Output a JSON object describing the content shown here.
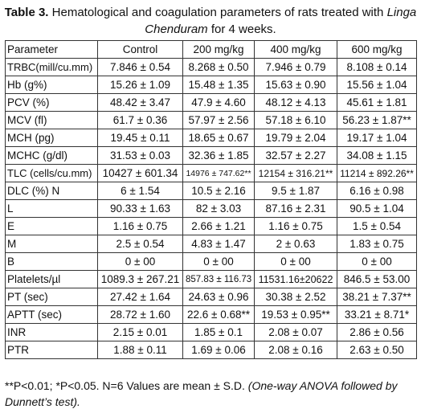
{
  "title": {
    "label": "Table 3.",
    "text": "Hematological and coagulation parameters of rats treated with",
    "italic": "Linga Chenduram",
    "end": "for 4 weeks."
  },
  "table": {
    "header": [
      "Parameter",
      "Control",
      "200 mg/kg",
      "400 mg/kg",
      "600 mg/kg"
    ],
    "rows": [
      [
        "TRBC(mill/cu.mm)",
        "7.846 ± 0.54",
        "8.268 ± 0.50",
        "7.946 ± 0.79",
        "8.108 ± 0.14"
      ],
      [
        "Hb (g%)",
        "15.26 ± 1.09",
        "15.48 ± 1.35",
        "15.63 ± 0.90",
        "15.56 ± 1.04"
      ],
      [
        "PCV (%)",
        "48.42 ± 3.47",
        "47.9 ± 4.60",
        "48.12 ± 4.13",
        "45.61 ± 1.81"
      ],
      [
        "MCV (fl)",
        "61.7 ± 0.36",
        "57.97 ± 2.56",
        "57.18 ± 6.10",
        "56.23 ± 1.87**"
      ],
      [
        "MCH (pg)",
        "19.45 ± 0.11",
        "18.65 ± 0.67",
        "19.79 ± 2.04",
        "19.17 ± 1.04"
      ],
      [
        "MCHC (g/dl)",
        "31.53 ± 0.03",
        "32.36 ± 1.85",
        "32.57 ± 2.27",
        "34.08 ± 1.15"
      ],
      [
        "TLC (cells/cu.mm)",
        "10427 ± 601.34",
        "14976 ± 747.62**",
        "12154 ± 316.21**",
        "11214 ± 892.26**"
      ],
      [
        "DLC (%) N",
        "6 ± 1.54",
        "10.5 ± 2.16",
        "9.5 ± 1.87",
        "6.16 ± 0.98"
      ],
      [
        "L",
        "90.33 ± 1.63",
        "82 ± 3.03",
        "87.16 ± 2.31",
        "90.5 ± 1.04"
      ],
      [
        "E",
        "1.16 ± 0.75",
        "2.66 ± 1.21",
        "1.16 ± 0.75",
        "1.5 ± 0.54"
      ],
      [
        "M",
        "2.5 ± 0.54",
        "4.83 ± 1.47",
        "2 ± 0.63",
        "1.83 ± 0.75"
      ],
      [
        "B",
        "0 ± 00",
        "0 ± 00",
        "0 ± 00",
        "0 ± 00"
      ],
      [
        "Platelets/µl",
        "1089.3 ± 267.21",
        "857.83 ± 116.73",
        "11531.16±20622",
        "846.5 ± 53.00"
      ],
      [
        "PT (sec)",
        "27.42 ± 1.64",
        "24.63 ± 0.96",
        "30.38 ± 2.52",
        "38.21 ± 7.37**"
      ],
      [
        "APTT (sec)",
        "28.72 ± 1.60",
        "22.6 ± 0.68**",
        "19.53 ± 0.95**",
        "33.21 ± 8.71*"
      ],
      [
        "INR",
        "2.15 ± 0.01",
        "1.85 ± 0.1",
        "2.08 ± 0.07",
        "2.86 ± 0.56"
      ],
      [
        "PTR",
        "1.88 ± 0.11",
        "1.69 ± 0.06",
        "2.08 ± 0.16",
        "2.63 ± 0.50"
      ]
    ]
  },
  "footnote": {
    "text": "**P<0.01; *P<0.05. N=6 Values are mean ± S.D.",
    "italic": "(One-way ANOVA followed by Dunnett’s test)."
  }
}
